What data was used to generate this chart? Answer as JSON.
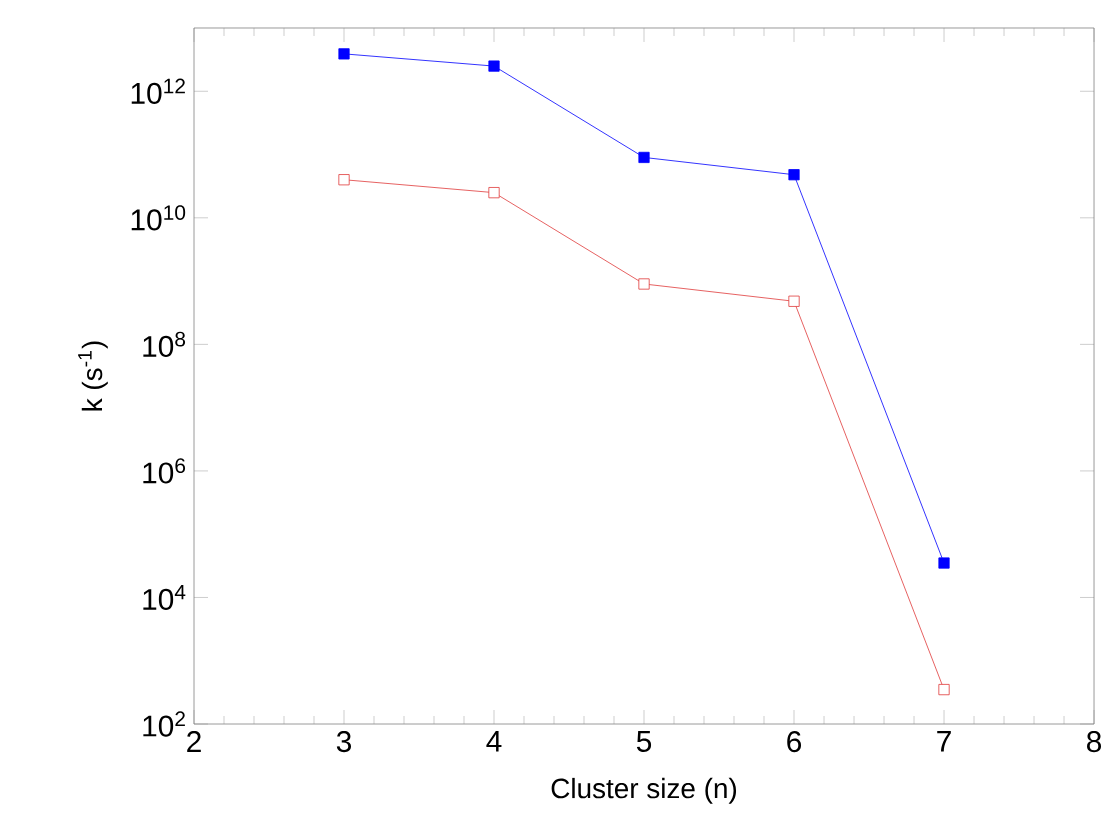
{
  "chart_data": {
    "type": "line",
    "xlabel": "Cluster size (n)",
    "ylabel": "k (s$^{-1}$)",
    "x": [
      3,
      4,
      5,
      6,
      7
    ],
    "series": [
      {
        "color": "#0000ff",
        "values": [
          3900000000000.0,
          2500000000000.0,
          90000000000.0,
          48000000000.0,
          35000.0
        ]
      },
      {
        "color": "#e03a3a",
        "values": [
          40000000000.0,
          25000000000.0,
          900000000.0,
          480000000.0,
          350.0
        ]
      }
    ],
    "log": "y",
    "xlim": [
      2,
      8
    ],
    "ylim": [
      100,
      10000000000000.0
    ],
    "xticks": [
      2,
      3,
      4,
      5,
      6,
      7,
      8
    ],
    "yticks": [
      {
        "value": 100,
        "label": "10$^{2}$"
      },
      {
        "value": 10000.0,
        "label": "10$^{4}$"
      },
      {
        "value": 1000000.0,
        "label": "10$^{6}$"
      },
      {
        "value": 100000000.0,
        "label": "10$^{8}$"
      },
      {
        "value": 10000000000.0,
        "label": "10$^{10}$"
      },
      {
        "value": 1000000000000.0,
        "label": "10$^{12}$"
      }
    ],
    "grid": false,
    "marker": "square",
    "line_style": "solid"
  }
}
